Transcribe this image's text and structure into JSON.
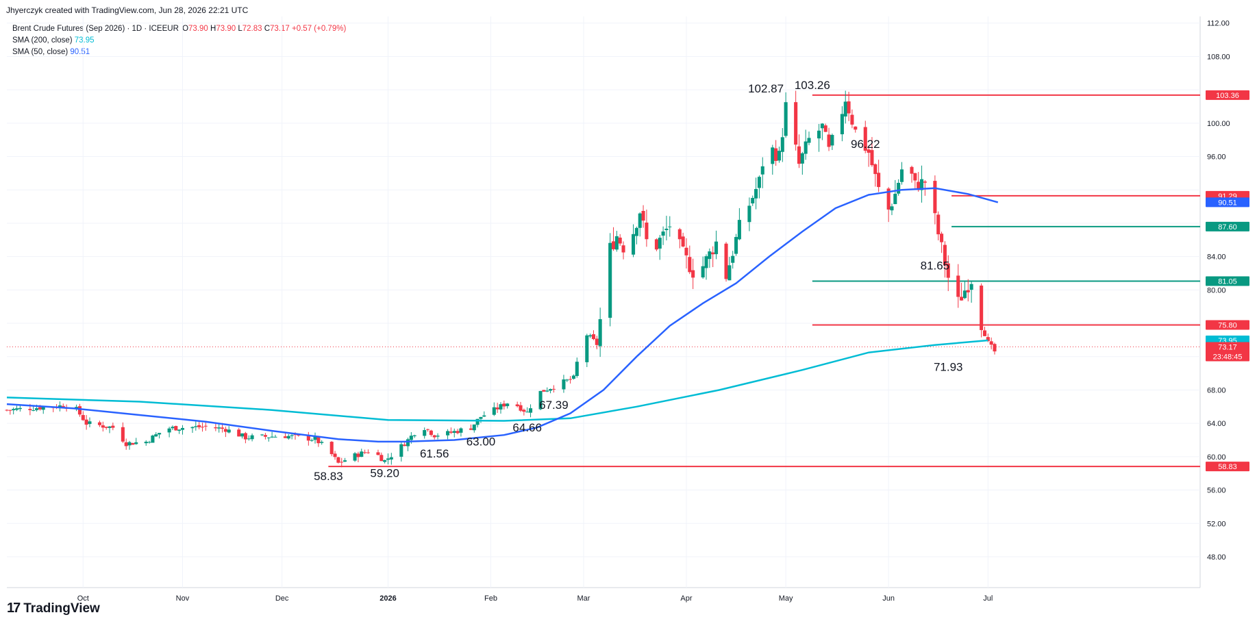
{
  "credit": "Jhyerczyk created with TradingView.com, Jun 28, 2026 22:21 UTC",
  "legend": {
    "symbol": "Brent Crude Futures (Sep 2026) · 1D · ICEEUR",
    "o_label": "O",
    "o_value": "73.90",
    "h_label": "H",
    "h_value": "73.90",
    "l_label": "L",
    "l_value": "72.83",
    "c_label": "C",
    "c_value": "73.17",
    "change": "+0.57 (+0.79%)",
    "sma200_label": "SMA (200, close)",
    "sma200_value": "73.95",
    "sma50_label": "SMA (50, close)",
    "sma50_value": "90.51"
  },
  "brand": {
    "mark": "17",
    "name": "TradingView"
  },
  "chart_data": {
    "type": "candlestick",
    "y_axis": {
      "ticks": [
        48,
        52,
        56,
        60,
        64,
        68,
        72,
        76,
        80,
        84,
        88,
        92,
        96,
        100,
        104,
        108,
        112
      ],
      "ylim": [
        44.3,
        112.8
      ],
      "labels_shown": [
        "112.00",
        "108.00",
        "100.00",
        "96.00",
        "84.00",
        "80.00",
        "68.00",
        "64.00",
        "60.00",
        "56.00",
        "52.00",
        "48.00"
      ]
    },
    "x_axis": {
      "labels": [
        "Oct",
        "Nov",
        "Dec",
        "2026",
        "Feb",
        "Mar",
        "Apr",
        "May",
        "Jun",
        "Jul"
      ],
      "label_days": [
        23,
        53,
        83,
        115,
        146,
        174,
        205,
        235,
        266,
        296
      ],
      "start_date": "2025-09-08",
      "end_date": "2026-07-20"
    },
    "anchors": [
      {
        "day": 0,
        "close": 65.6
      },
      {
        "day": 20,
        "close": 66.2
      },
      {
        "day": 24,
        "close": 64.0
      },
      {
        "day": 32,
        "close": 63.5
      },
      {
        "day": 36,
        "close": 61.6
      },
      {
        "day": 42,
        "close": 61.8
      },
      {
        "day": 48,
        "close": 63.4
      },
      {
        "day": 60,
        "close": 63.6
      },
      {
        "day": 66,
        "close": 63.3
      },
      {
        "day": 72,
        "close": 62.3
      },
      {
        "day": 84,
        "close": 62.5
      },
      {
        "day": 93,
        "close": 62.1
      },
      {
        "day": 97,
        "close": 60.8
      },
      {
        "day": 100,
        "close": 59.2
      },
      {
        "day": 104,
        "close": 60.0
      },
      {
        "day": 110,
        "close": 60.8
      },
      {
        "day": 114,
        "close": 59.5
      },
      {
        "day": 117,
        "close": 60.5
      },
      {
        "day": 121,
        "close": 62.0
      },
      {
        "day": 125,
        "close": 63.8
      },
      {
        "day": 129,
        "close": 62.6
      },
      {
        "day": 133,
        "close": 62.8
      },
      {
        "day": 140,
        "close": 63.5
      },
      {
        "day": 143,
        "close": 64.8
      },
      {
        "day": 147,
        "close": 65.6
      },
      {
        "day": 152,
        "close": 66.7
      },
      {
        "day": 157,
        "close": 65.3
      },
      {
        "day": 160,
        "close": 67.6
      },
      {
        "day": 167,
        "close": 68.8
      },
      {
        "day": 171,
        "close": 69.4
      },
      {
        "day": 174,
        "close": 75.0
      },
      {
        "day": 178,
        "close": 73.5
      },
      {
        "day": 182,
        "close": 85.0
      },
      {
        "day": 184,
        "close": 86.5
      },
      {
        "day": 187,
        "close": 84.5
      },
      {
        "day": 191,
        "close": 89.5
      },
      {
        "day": 194,
        "close": 84.0
      },
      {
        "day": 197,
        "close": 86.0
      },
      {
        "day": 200,
        "close": 87.8
      },
      {
        "day": 204,
        "close": 84.3
      },
      {
        "day": 208,
        "close": 81.5
      },
      {
        "day": 214,
        "close": 85.7
      },
      {
        "day": 217,
        "close": 81.7
      },
      {
        "day": 221,
        "close": 87.5
      },
      {
        "day": 227,
        "close": 93.0
      },
      {
        "day": 229,
        "close": 97.5
      },
      {
        "day": 233,
        "close": 96.0
      },
      {
        "day": 235,
        "close": 102.0
      },
      {
        "day": 239,
        "close": 95.0
      },
      {
        "day": 242,
        "close": 98.0
      },
      {
        "day": 246,
        "close": 99.5
      },
      {
        "day": 248,
        "close": 96.6
      },
      {
        "day": 251,
        "close": 100.0
      },
      {
        "day": 253,
        "close": 103.0
      },
      {
        "day": 256,
        "close": 99.0
      },
      {
        "day": 260,
        "close": 96.5
      },
      {
        "day": 263,
        "close": 92.0
      },
      {
        "day": 266,
        "close": 89.6
      },
      {
        "day": 268,
        "close": 91.5
      },
      {
        "day": 271,
        "close": 96.0
      },
      {
        "day": 274,
        "close": 92.5
      },
      {
        "day": 277,
        "close": 93.0
      },
      {
        "day": 280,
        "close": 88.5
      },
      {
        "day": 284,
        "close": 81.5
      },
      {
        "day": 287,
        "close": 78.5
      },
      {
        "day": 289,
        "close": 80.0
      },
      {
        "day": 291,
        "close": 81.3
      },
      {
        "day": 294,
        "close": 76.0
      },
      {
        "day": 296,
        "close": 73.6
      },
      {
        "day": 298,
        "close": 72.6
      },
      {
        "day": 299,
        "close": 73.17
      }
    ],
    "sma200": [
      {
        "day": 0,
        "value": 67.1
      },
      {
        "day": 40,
        "value": 66.6
      },
      {
        "day": 80,
        "value": 65.6
      },
      {
        "day": 115,
        "value": 64.4
      },
      {
        "day": 150,
        "value": 64.3
      },
      {
        "day": 170,
        "value": 64.6
      },
      {
        "day": 190,
        "value": 66.0
      },
      {
        "day": 215,
        "value": 68.0
      },
      {
        "day": 240,
        "value": 70.4
      },
      {
        "day": 260,
        "value": 72.5
      },
      {
        "day": 280,
        "value": 73.4
      },
      {
        "day": 296,
        "value": 73.95
      }
    ],
    "sma50": [
      {
        "day": 0,
        "value": 66.3
      },
      {
        "day": 20,
        "value": 65.8
      },
      {
        "day": 40,
        "value": 65.0
      },
      {
        "day": 60,
        "value": 64.2
      },
      {
        "day": 80,
        "value": 63.1
      },
      {
        "day": 100,
        "value": 62.1
      },
      {
        "day": 112,
        "value": 61.8
      },
      {
        "day": 120,
        "value": 61.8
      },
      {
        "day": 135,
        "value": 62.0
      },
      {
        "day": 150,
        "value": 62.6
      },
      {
        "day": 160,
        "value": 63.5
      },
      {
        "day": 170,
        "value": 65.2
      },
      {
        "day": 180,
        "value": 68.0
      },
      {
        "day": 190,
        "value": 72.0
      },
      {
        "day": 200,
        "value": 75.7
      },
      {
        "day": 210,
        "value": 78.4
      },
      {
        "day": 220,
        "value": 80.8
      },
      {
        "day": 230,
        "value": 84.0
      },
      {
        "day": 240,
        "value": 87.0
      },
      {
        "day": 250,
        "value": 89.8
      },
      {
        "day": 260,
        "value": 91.4
      },
      {
        "day": 270,
        "value": 92.0
      },
      {
        "day": 280,
        "value": 92.2
      },
      {
        "day": 290,
        "value": 91.5
      },
      {
        "day": 299,
        "value": 90.51
      }
    ],
    "annotations": [
      {
        "text": "58.83",
        "day": 97,
        "price": 58.83,
        "pos": "below"
      },
      {
        "text": "59.20",
        "day": 114,
        "price": 59.2,
        "pos": "below"
      },
      {
        "text": "61.56",
        "day": 129,
        "price": 61.56,
        "pos": "below"
      },
      {
        "text": "63.00",
        "day": 143,
        "price": 63.0,
        "pos": "below"
      },
      {
        "text": "64.66",
        "day": 157,
        "price": 64.66,
        "pos": "below"
      },
      {
        "text": "67.39",
        "day": 165,
        "price": 67.39,
        "pos": "below"
      },
      {
        "text": "102.87",
        "day": 229,
        "price": 102.87,
        "pos": "above"
      },
      {
        "text": "103.26",
        "day": 243,
        "price": 103.26,
        "pos": "above"
      },
      {
        "text": "96.22",
        "day": 259,
        "price": 96.22,
        "pos": "above"
      },
      {
        "text": "81.65",
        "day": 280,
        "price": 81.65,
        "pos": "above"
      },
      {
        "text": "71.93",
        "day": 284,
        "price": 71.93,
        "pos": "below"
      }
    ],
    "horizontal_lines": [
      {
        "price": 103.36,
        "color": "#f23645",
        "from_day": 243,
        "label": "103.36"
      },
      {
        "price": 91.29,
        "color": "#f23645",
        "from_day": 285,
        "label": "91.29"
      },
      {
        "price": 87.6,
        "color": "#089981",
        "from_day": 285,
        "label": "87.60"
      },
      {
        "price": 81.05,
        "color": "#089981",
        "from_day": 243,
        "label": "81.05"
      },
      {
        "price": 75.8,
        "color": "#f23645",
        "from_day": 243,
        "label": "75.80"
      },
      {
        "price": 58.83,
        "color": "#f23645",
        "from_day": 97,
        "label": "58.83"
      }
    ],
    "price_labels": [
      {
        "price": 90.51,
        "color": "#2962ff",
        "label": "90.51"
      },
      {
        "price": 73.95,
        "color": "#00bcd4",
        "label": "73.95"
      },
      {
        "price": 73.17,
        "color": "#f23645",
        "label": "73.17",
        "sub": "23:48:45"
      }
    ],
    "last_price": 73.17,
    "colors": {
      "up": "#089981",
      "down": "#f23645",
      "sma200": "#00bcd4",
      "sma50": "#2962ff",
      "grid": "#f0f3fa"
    }
  }
}
